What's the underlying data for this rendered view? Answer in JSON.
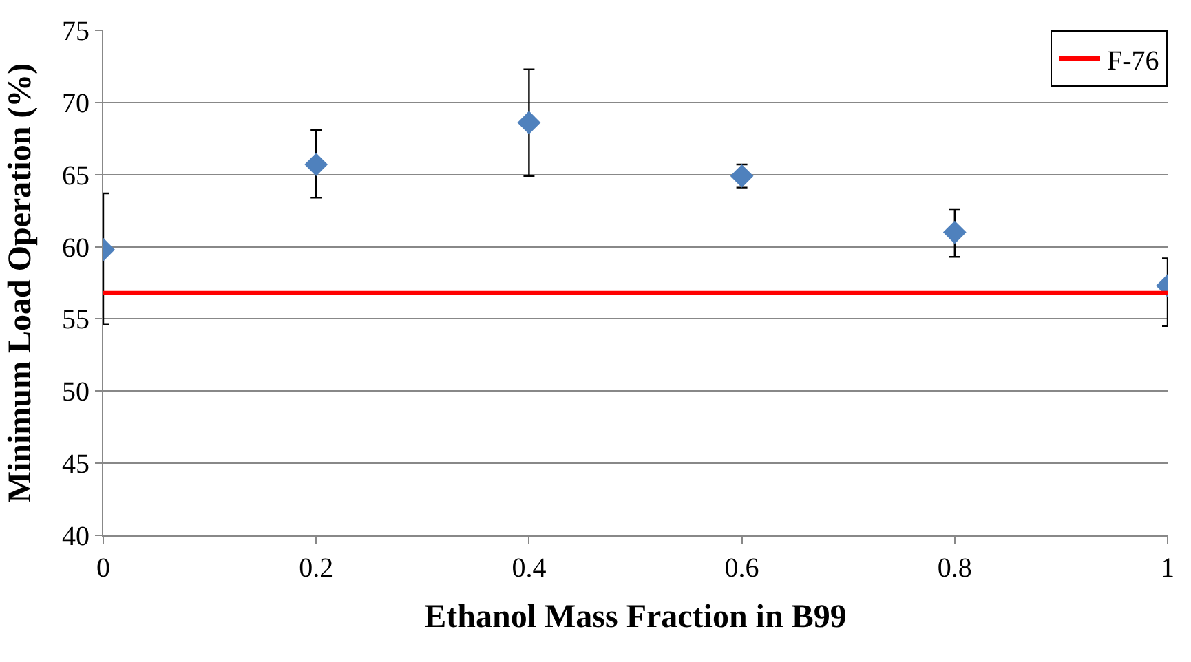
{
  "chart_data": {
    "type": "scatter",
    "xlabel": "Ethanol Mass Fraction in B99",
    "ylabel": "Minimum Load Operation (%)",
    "xlim": [
      0,
      1
    ],
    "xticks": [
      0,
      0.2,
      0.4,
      0.6,
      0.8,
      1
    ],
    "ylim": [
      40,
      75
    ],
    "yticks": [
      40,
      45,
      50,
      55,
      60,
      65,
      70,
      75
    ],
    "grid": "y",
    "legend": "top right",
    "marker": "diamond",
    "series": [
      {
        "color": "#4f81bd",
        "x": [
          0,
          0.2,
          0.4,
          0.6,
          0.8,
          1
        ],
        "values": [
          59.8,
          65.7,
          68.6,
          64.9,
          61.0,
          57.3
        ],
        "errors": [
          [
            54.6,
            63.7
          ],
          [
            63.4,
            68.1
          ],
          [
            64.9,
            72.3
          ],
          [
            64.1,
            65.7
          ],
          [
            59.3,
            62.6
          ],
          [
            54.5,
            59.2
          ]
        ]
      },
      {
        "type": "line",
        "name": "F-76",
        "color": "#ff0000",
        "x": [
          0,
          1
        ],
        "values": [
          56.8,
          56.8
        ],
        "marker": "none"
      }
    ]
  }
}
